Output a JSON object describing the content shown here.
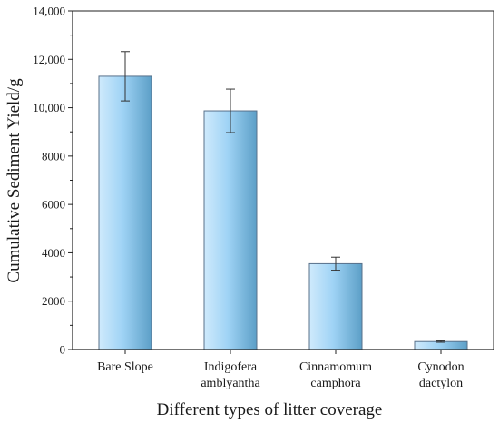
{
  "chart_data": {
    "type": "bar",
    "title": "",
    "xlabel": "Different types of litter coverage",
    "ylabel": "Cumulative Sediment Yield/g",
    "categories": [
      [
        "Bare Slope"
      ],
      [
        "Indigofera",
        "amblyantha"
      ],
      [
        "Cinnamomum",
        "camphora"
      ],
      [
        "Cynodon",
        "dactylon"
      ]
    ],
    "values": [
      11300,
      9870,
      3550,
      330
    ],
    "errors": [
      1020,
      900,
      270,
      30
    ],
    "ylim": [
      0,
      14000
    ],
    "yticks": [
      0,
      2000,
      4000,
      6000,
      8000,
      10000,
      12000,
      14000
    ],
    "ytick_labels": [
      "0",
      "2000",
      "4000",
      "6000",
      "8000",
      "10,000",
      "12,000",
      "14,000"
    ],
    "grid": false,
    "legend": "none",
    "colors": {
      "bar_edge": "#58708a",
      "bar_light": "#cfeafc",
      "bar_mid": "#9fd3f5",
      "bar_dark": "#5c9fc7",
      "axis": "#222222"
    }
  }
}
